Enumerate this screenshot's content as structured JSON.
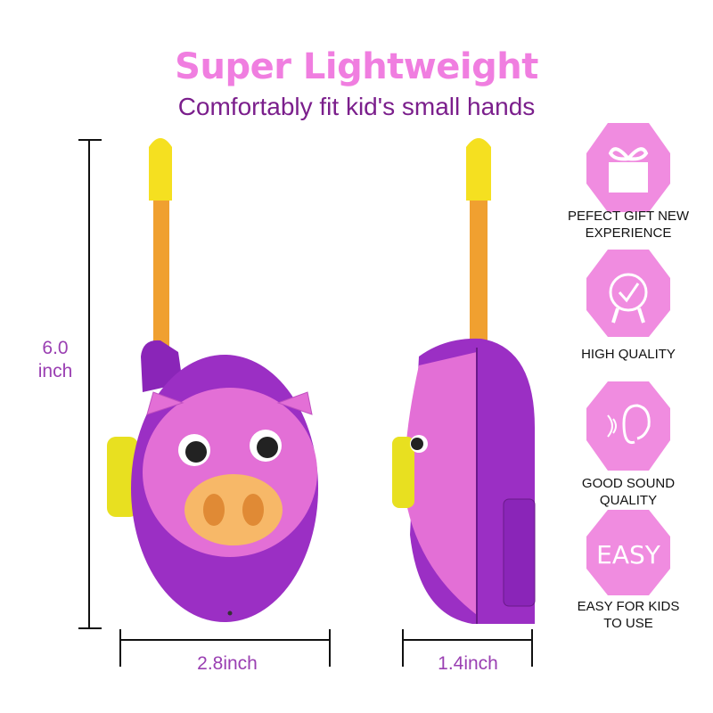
{
  "header": {
    "title": "Super Lightweight",
    "subtitle": "Comfortably fit kid's small hands"
  },
  "dimensions": {
    "height_value": "6.0",
    "height_unit": "inch",
    "width": "2.8inch",
    "depth": "1.4inch"
  },
  "features": [
    {
      "icon": "gift-icon",
      "label": "PEFECT GIFT NEW EXPERIENCE"
    },
    {
      "icon": "quality-badge-icon",
      "label": "HIGH QUALITY"
    },
    {
      "icon": "ear-sound-icon",
      "label": "GOOD SOUND QUALITY"
    },
    {
      "icon": "easy-text-icon",
      "label": "EASY FOR KIDS TO USE",
      "icon_text": "EASY"
    }
  ],
  "colors": {
    "title": "#f07ee0",
    "subtitle": "#7b1f8c",
    "dimension": "#9a3fb2",
    "hexagon": "#f08ce0",
    "body": "#9b2fc4",
    "face": "#e36fd6",
    "antenna": "#f0a030",
    "tip": "#f5e020"
  }
}
